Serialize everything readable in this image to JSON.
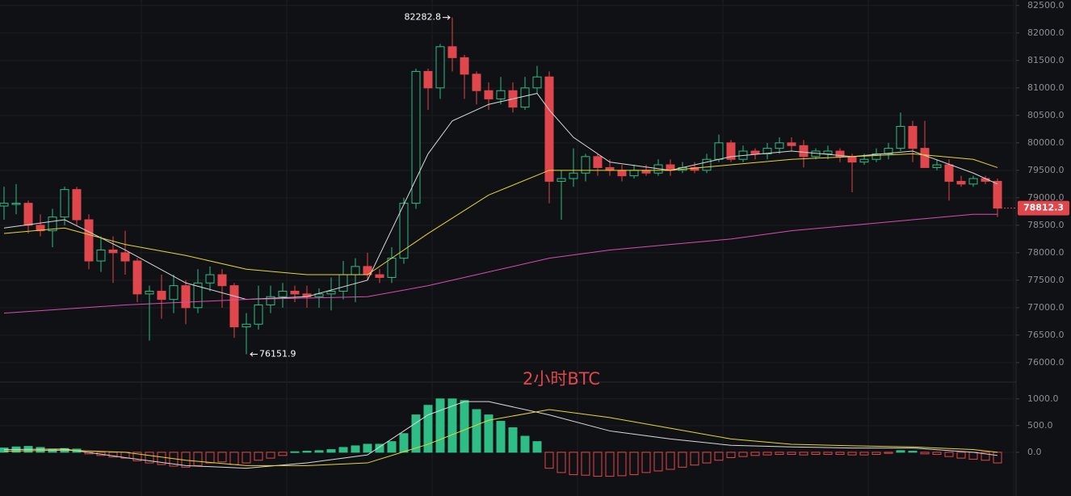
{
  "chart_data": [
    {
      "type": "candlestick",
      "open": [
        78850,
        78880,
        78900,
        78500,
        78400,
        78650,
        79150,
        78600,
        77850,
        78050,
        78000,
        77850,
        77250,
        77300,
        77150,
        77400,
        77000,
        77450,
        77600,
        77400,
        76650,
        76700,
        77050,
        77200,
        77300,
        77250,
        77200,
        77250,
        77300,
        77600,
        77750,
        77600,
        77550,
        77900,
        78900,
        81300,
        81000,
        81750,
        81550,
        81250,
        80950,
        80800,
        80950,
        80650,
        81000,
        81200,
        79300,
        79350,
        79450,
        79750,
        79550,
        79500,
        79400,
        79500,
        79450,
        79600,
        79500,
        79550,
        79500,
        79700,
        80000,
        79700,
        79850,
        79800,
        79900,
        80000,
        79950,
        79750,
        79800,
        79850,
        79750,
        79650,
        79700,
        79800,
        79900,
        80300,
        79900,
        79550,
        79600,
        79300,
        79250,
        79350,
        79300
      ],
      "high": [
        79200,
        79250,
        78950,
        78700,
        78800,
        79200,
        79200,
        78700,
        78300,
        78300,
        78400,
        77900,
        77400,
        77600,
        77600,
        77500,
        77700,
        77750,
        77700,
        77450,
        76900,
        77400,
        77400,
        77450,
        77400,
        77400,
        77350,
        77550,
        77850,
        77900,
        78000,
        77700,
        78100,
        79000,
        81350,
        81350,
        81800,
        82282.8,
        81600,
        81300,
        81100,
        81200,
        81100,
        81200,
        81400,
        81300,
        79500,
        79900,
        79800,
        79800,
        79700,
        79600,
        79600,
        79600,
        79700,
        79700,
        79650,
        79650,
        79800,
        80150,
        80050,
        79950,
        79900,
        80000,
        80100,
        80100,
        80050,
        79900,
        79950,
        79900,
        79800,
        79800,
        79900,
        80000,
        80550,
        80400,
        80400,
        79700,
        79700,
        79400,
        79400,
        79400,
        79350
      ],
      "low": [
        78600,
        78700,
        78350,
        78300,
        78100,
        78500,
        78500,
        77700,
        77650,
        77450,
        77600,
        77100,
        76400,
        76800,
        76900,
        76700,
        76900,
        77300,
        77000,
        76450,
        76151.9,
        76600,
        76900,
        77000,
        77100,
        77000,
        77000,
        76950,
        77150,
        77100,
        77500,
        77450,
        77450,
        77800,
        78800,
        80600,
        80800,
        81300,
        80800,
        80700,
        80600,
        80700,
        80550,
        80600,
        80900,
        78900,
        78600,
        79200,
        79300,
        79400,
        79400,
        79300,
        79350,
        79400,
        79400,
        79400,
        79450,
        79450,
        79450,
        79650,
        79650,
        79650,
        79700,
        79700,
        79800,
        79850,
        79550,
        79700,
        79700,
        79650,
        79100,
        79600,
        79650,
        79700,
        79850,
        79650,
        79550,
        79500,
        78950,
        79200,
        79200,
        79250,
        78650
      ],
      "close": [
        78900,
        78900,
        78500,
        78400,
        78650,
        79150,
        78600,
        77850,
        78050,
        78000,
        77850,
        77250,
        77300,
        77150,
        77400,
        77000,
        77450,
        77600,
        77400,
        76650,
        76700,
        77050,
        77200,
        77300,
        77250,
        77200,
        77250,
        77300,
        77600,
        77750,
        77600,
        77550,
        77900,
        78900,
        81300,
        81000,
        81750,
        81550,
        81250,
        80950,
        80800,
        80950,
        80650,
        81000,
        81200,
        79300,
        79350,
        79450,
        79750,
        79550,
        79500,
        79400,
        79500,
        79450,
        79600,
        79500,
        79550,
        79500,
        79700,
        80000,
        79700,
        79850,
        79800,
        79900,
        80000,
        79950,
        79750,
        79850,
        79850,
        79750,
        79650,
        79700,
        79800,
        79900,
        80300,
        79900,
        79550,
        79600,
        79300,
        79250,
        79350,
        79300,
        78812.3
      ],
      "up_color": "#2ebd85",
      "down_color": "#e0474c",
      "ylim": [
        75660,
        82600
      ],
      "yticks": [
        {
          "value": 76000,
          "label": "76000.0"
        },
        {
          "value": 76500,
          "label": "76500.0"
        },
        {
          "value": 77000,
          "label": "77000.0"
        },
        {
          "value": 77500,
          "label": "77500.0"
        },
        {
          "value": 78000,
          "label": "78000.0"
        },
        {
          "value": 78500,
          "label": "78500.0"
        },
        {
          "value": 79000,
          "label": "79000.0"
        },
        {
          "value": 79500,
          "label": "79500.0"
        },
        {
          "value": 80000,
          "label": "80000.0"
        },
        {
          "value": 80500,
          "label": "80500.0"
        },
        {
          "value": 81000,
          "label": "81000.0"
        },
        {
          "value": 81500,
          "label": "81500.0"
        },
        {
          "value": 82000,
          "label": "82000.0"
        },
        {
          "value": 82500,
          "label": "82500.0"
        }
      ],
      "grid": true,
      "lines": [
        {
          "color": "#d9d9d9",
          "x": [
            0,
            5,
            10,
            15,
            20,
            25,
            30,
            35,
            37,
            40,
            44,
            45,
            47,
            50,
            55,
            60,
            65,
            70,
            75,
            80,
            82
          ],
          "values": [
            78450,
            78600,
            78050,
            77450,
            77150,
            77200,
            77500,
            79800,
            80400,
            80700,
            80900,
            80600,
            80100,
            79650,
            79500,
            79750,
            79850,
            79750,
            79850,
            79450,
            79250
          ]
        },
        {
          "color": "#e8d43a",
          "x": [
            0,
            5,
            10,
            15,
            20,
            25,
            30,
            35,
            40,
            45,
            50,
            55,
            60,
            65,
            70,
            75,
            80,
            82
          ],
          "values": [
            78350,
            78450,
            78150,
            77950,
            77700,
            77600,
            77600,
            78350,
            79050,
            79500,
            79500,
            79500,
            79600,
            79700,
            79750,
            79800,
            79700,
            79550
          ]
        },
        {
          "color": "#d64fb0",
          "x": [
            0,
            10,
            20,
            30,
            35,
            40,
            45,
            50,
            55,
            60,
            65,
            70,
            75,
            80,
            82
          ],
          "values": [
            76900,
            77050,
            77150,
            77200,
            77400,
            77650,
            77900,
            78050,
            78150,
            78250,
            78400,
            78500,
            78600,
            78700,
            78700
          ]
        }
      ]
    },
    {
      "type": "macd",
      "title": "2小时BTC",
      "values": [
        80,
        100,
        110,
        90,
        60,
        70,
        60,
        -30,
        -60,
        -90,
        -110,
        -160,
        -200,
        -230,
        -260,
        -280,
        -250,
        -200,
        -180,
        -230,
        -200,
        -150,
        -110,
        -60,
        10,
        20,
        30,
        50,
        90,
        120,
        150,
        150,
        200,
        350,
        700,
        880,
        1000,
        1000,
        970,
        800,
        700,
        580,
        460,
        300,
        200,
        -300,
        -380,
        -420,
        -430,
        -450,
        -450,
        -440,
        -420,
        -380,
        -350,
        -320,
        -280,
        -240,
        -200,
        -150,
        -100,
        -80,
        -60,
        -50,
        -40,
        -40,
        -50,
        -40,
        -40,
        -40,
        -50,
        -50,
        -40,
        -20,
        30,
        20,
        -30,
        -40,
        -80,
        -110,
        -130,
        -150,
        -200
      ],
      "up_color": "#2ebd85",
      "down_color": "#e0474c",
      "ylim": [
        -820,
        1300
      ],
      "yticks": [
        {
          "value": 0,
          "label": "0.0"
        },
        {
          "value": 500,
          "label": "500.0"
        },
        {
          "value": 1000,
          "label": "1000.0"
        }
      ],
      "lines": [
        {
          "color": "#d9d9d9",
          "x": [
            0,
            5,
            10,
            15,
            20,
            25,
            30,
            35,
            38,
            40,
            45,
            50,
            55,
            60,
            65,
            70,
            75,
            80,
            82
          ],
          "values": [
            50,
            60,
            -100,
            -250,
            -300,
            -200,
            -50,
            700,
            950,
            950,
            700,
            400,
            250,
            130,
            100,
            80,
            80,
            0,
            -60
          ]
        },
        {
          "color": "#e8d43a",
          "x": [
            0,
            5,
            10,
            15,
            20,
            25,
            30,
            35,
            40,
            45,
            50,
            55,
            60,
            65,
            70,
            75,
            80,
            82
          ],
          "values": [
            20,
            40,
            0,
            -150,
            -250,
            -250,
            -200,
            150,
            600,
            800,
            650,
            450,
            250,
            150,
            120,
            100,
            50,
            0
          ]
        }
      ]
    }
  ]
}
